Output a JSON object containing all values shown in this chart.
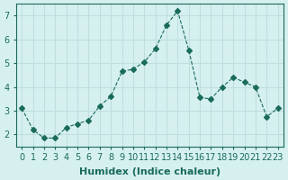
{
  "x": [
    0,
    1,
    2,
    3,
    4,
    5,
    6,
    7,
    8,
    9,
    10,
    11,
    12,
    13,
    14,
    15,
    16,
    17,
    18,
    19,
    20,
    21,
    22,
    23
  ],
  "y": [
    3.1,
    2.2,
    1.85,
    1.85,
    2.3,
    2.45,
    2.6,
    3.2,
    3.6,
    4.65,
    4.75,
    5.05,
    5.6,
    6.6,
    7.2,
    5.55,
    3.55,
    3.5,
    4.0,
    4.4,
    4.2,
    4.0,
    2.75,
    3.1
  ],
  "line_color": "#1a6b5a",
  "marker": "D",
  "marker_size": 3,
  "line_width": 0.8,
  "bg_color": "#d6f0f0",
  "grid_color": "#c0dede",
  "xlabel": "Humidex (Indice chaleur)",
  "xlim": [
    -0.5,
    23.5
  ],
  "ylim": [
    1.5,
    7.5
  ],
  "yticks": [
    2,
    3,
    4,
    5,
    6,
    7
  ],
  "xticks": [
    0,
    1,
    2,
    3,
    4,
    5,
    6,
    7,
    8,
    9,
    10,
    11,
    12,
    13,
    14,
    15,
    16,
    17,
    18,
    19,
    20,
    21,
    22,
    23
  ],
  "xlabel_fontsize": 8,
  "tick_fontsize": 7
}
